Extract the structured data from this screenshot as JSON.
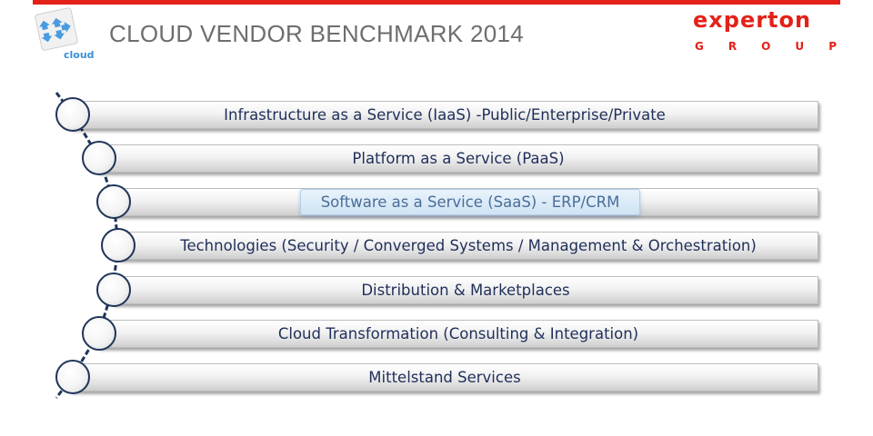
{
  "header": {
    "title": "CLOUD VENDOR BENCHMARK 2014",
    "logo_label": "cloud",
    "brand_name": "experton",
    "brand_sub": [
      "G",
      "R",
      "O",
      "U",
      "P"
    ],
    "brand_color": "#e32119",
    "logo_icon": "cloud-arrows-icon"
  },
  "items": [
    {
      "label": "Infrastructure as a Service (IaaS) -Public/Enterprise/Private",
      "highlighted": false
    },
    {
      "label": "Platform as a Service (PaaS)",
      "highlighted": false
    },
    {
      "label": "Software as a Service (SaaS) - ERP/CRM",
      "highlighted": true
    },
    {
      "label": "Technologies (Security / Converged Systems / Management & Orchestration)",
      "highlighted": false
    },
    {
      "label": "Distribution & Marketplaces",
      "highlighted": false
    },
    {
      "label": "Cloud Transformation (Consulting & Integration)",
      "highlighted": false
    },
    {
      "label": "Mittelstand Services",
      "highlighted": false
    }
  ],
  "colors": {
    "text": "#1f2f5a",
    "highlight_text": "#4a6e98",
    "chain": "#1f3559"
  }
}
